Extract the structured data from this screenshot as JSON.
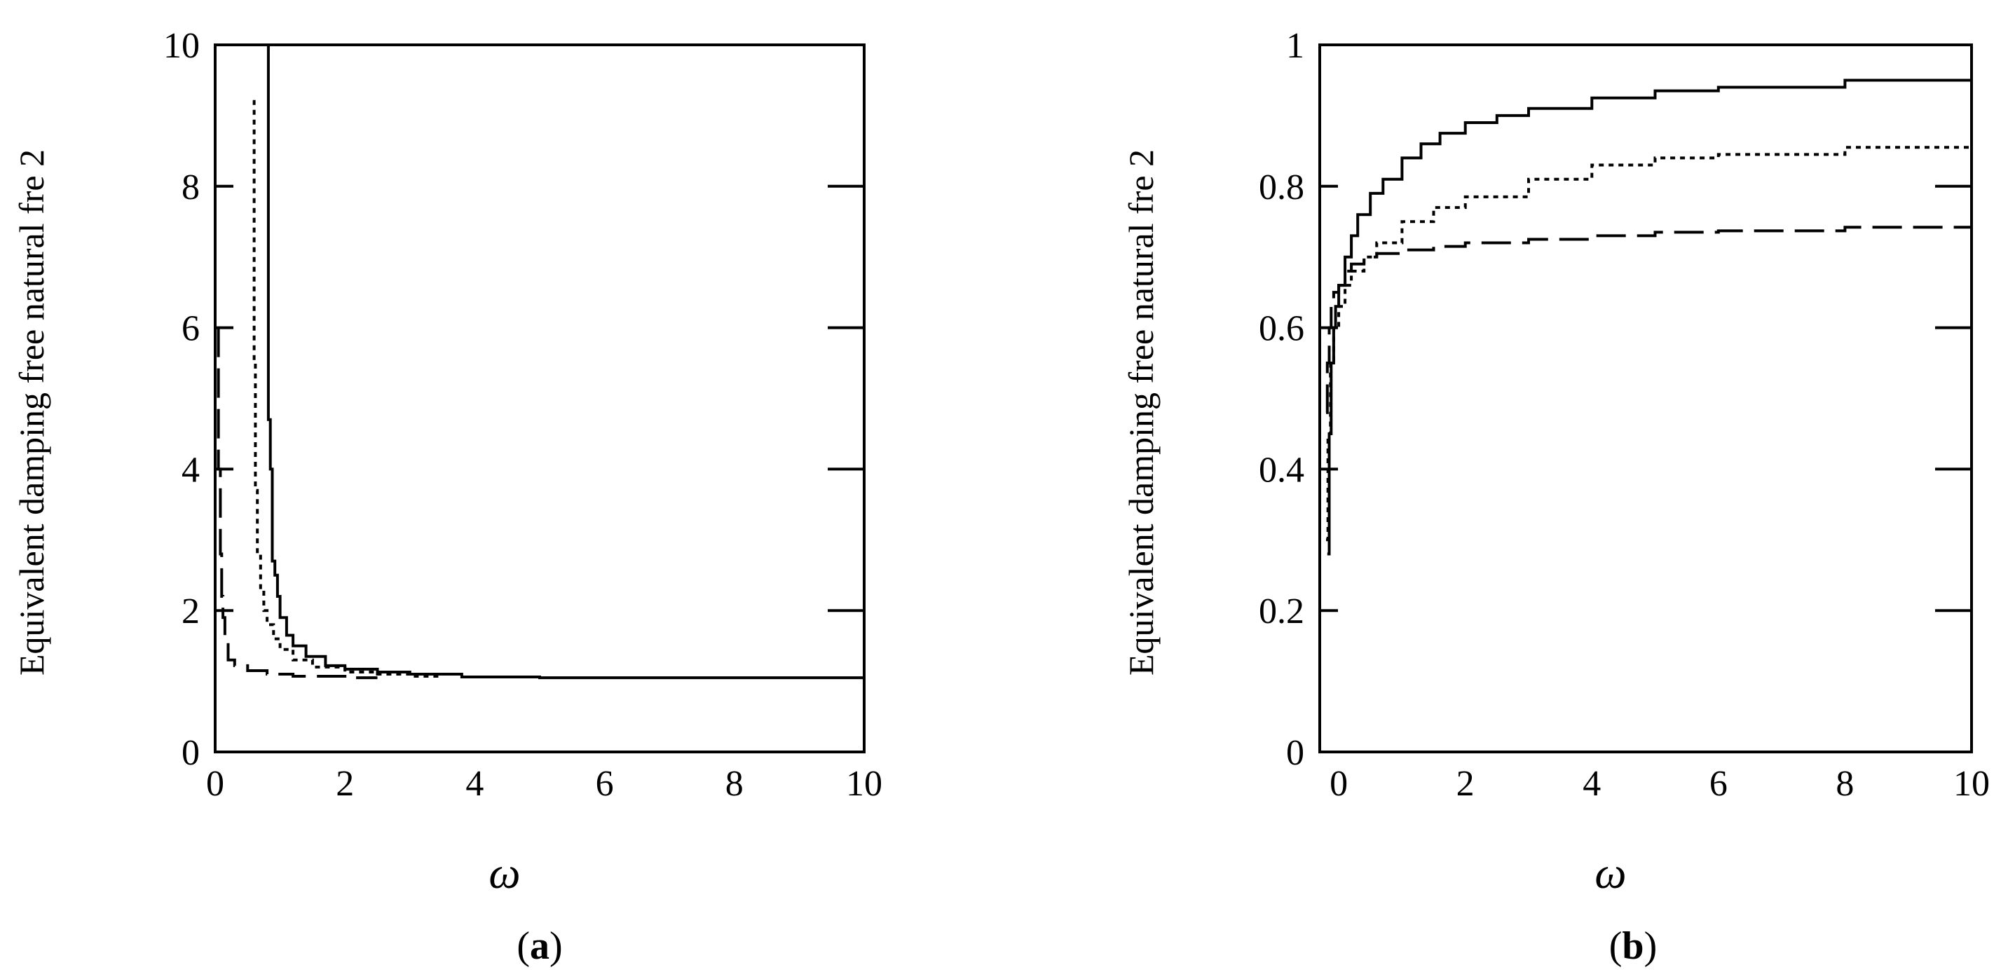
{
  "chart_data": [
    {
      "type": "line",
      "panel": "(a)",
      "panel_letter": "a",
      "xlabel": "ω",
      "ylabel": "Equivalent damping free natural fre 2",
      "xlim": [
        0,
        10
      ],
      "ylim": [
        0,
        10
      ],
      "xticks": [
        0,
        2,
        4,
        6,
        8,
        10
      ],
      "yticks": [
        0,
        2,
        4,
        6,
        8,
        10
      ],
      "series": [
        {
          "style": "solid",
          "x": [
            0.82,
            0.82,
            0.85,
            0.88,
            0.92,
            0.96,
            1.0,
            1.1,
            1.2,
            1.4,
            1.7,
            2.0,
            2.5,
            3.0,
            3.8,
            5.0,
            10.0
          ],
          "y": [
            10.0,
            4.7,
            4.0,
            2.7,
            2.5,
            2.2,
            1.9,
            1.65,
            1.5,
            1.35,
            1.22,
            1.17,
            1.13,
            1.1,
            1.06,
            1.05,
            1.05
          ]
        },
        {
          "style": "dotted",
          "x": [
            0.58,
            0.6,
            0.62,
            0.65,
            0.7,
            0.75,
            0.8,
            0.9,
            1.0,
            1.2,
            1.5,
            2.0,
            2.5,
            3.0,
            3.5
          ],
          "y": [
            9.2,
            5.5,
            3.7,
            2.8,
            2.3,
            2.0,
            1.8,
            1.6,
            1.45,
            1.3,
            1.2,
            1.13,
            1.1,
            1.07,
            1.06
          ]
        },
        {
          "style": "dashed",
          "x": [
            0.05,
            0.05,
            0.08,
            0.1,
            0.12,
            0.15,
            0.2,
            0.3,
            0.5,
            0.8,
            1.2,
            2.0,
            2.5
          ],
          "y": [
            6.0,
            4.0,
            2.8,
            2.2,
            1.9,
            1.6,
            1.3,
            1.22,
            1.15,
            1.1,
            1.07,
            1.05,
            1.05
          ]
        }
      ]
    },
    {
      "type": "line",
      "panel": "(b)",
      "panel_letter": "b",
      "xlabel": "ω",
      "ylabel": "Equivalent damping free natural fre 2",
      "xlim": [
        -0.3,
        10
      ],
      "ylim": [
        0,
        1
      ],
      "xticks": [
        0,
        2,
        4,
        6,
        8,
        10
      ],
      "yticks": [
        0,
        0.2,
        0.4,
        0.6,
        0.8,
        1
      ],
      "ytick_labels": [
        "0",
        "0.2",
        "0.4",
        "0.6",
        "0.8",
        "1"
      ],
      "series": [
        {
          "style": "solid",
          "x": [
            -0.18,
            -0.15,
            -0.12,
            -0.08,
            -0.05,
            0.0,
            0.1,
            0.2,
            0.3,
            0.5,
            0.7,
            1.0,
            1.3,
            1.6,
            2.0,
            2.5,
            3.0,
            4.0,
            5.0,
            6.0,
            8.0,
            10.0
          ],
          "y": [
            0.28,
            0.45,
            0.55,
            0.6,
            0.63,
            0.66,
            0.7,
            0.73,
            0.76,
            0.79,
            0.81,
            0.84,
            0.86,
            0.875,
            0.89,
            0.9,
            0.91,
            0.925,
            0.935,
            0.94,
            0.95,
            0.96
          ]
        },
        {
          "style": "dotted",
          "x": [
            -0.2,
            -0.17,
            -0.13,
            -0.08,
            0.0,
            0.1,
            0.2,
            0.4,
            0.6,
            1.0,
            1.5,
            2.0,
            3.0,
            4.0,
            5.0,
            6.0,
            8.0,
            10.0
          ],
          "y": [
            0.3,
            0.45,
            0.55,
            0.6,
            0.63,
            0.66,
            0.68,
            0.7,
            0.72,
            0.75,
            0.77,
            0.785,
            0.81,
            0.83,
            0.84,
            0.845,
            0.855,
            0.865
          ]
        },
        {
          "style": "dashed",
          "x": [
            -0.2,
            -0.18,
            -0.15,
            -0.12,
            -0.08,
            0.0,
            0.1,
            0.2,
            0.4,
            0.6,
            1.0,
            1.5,
            2.0,
            3.0,
            4.0,
            5.0,
            6.0,
            8.0,
            10.0
          ],
          "y": [
            0.48,
            0.55,
            0.6,
            0.63,
            0.65,
            0.66,
            0.68,
            0.69,
            0.7,
            0.705,
            0.71,
            0.715,
            0.72,
            0.725,
            0.73,
            0.735,
            0.737,
            0.742,
            0.746
          ]
        }
      ]
    }
  ]
}
